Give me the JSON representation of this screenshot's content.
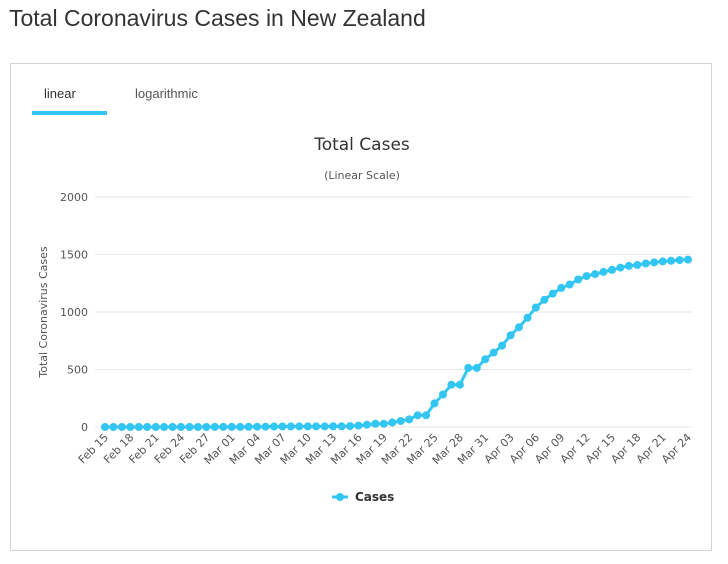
{
  "page": {
    "title": "Total Coronavirus Cases in New Zealand"
  },
  "tabs": [
    {
      "label": "linear",
      "active": true
    },
    {
      "label": "logarithmic",
      "active": false
    }
  ],
  "colors": {
    "accent": "#33c6f2",
    "series": "#33c6f2",
    "grid": "#e6e6e6"
  },
  "chart_data": {
    "type": "line",
    "title": "Total Cases",
    "subtitle": "(Linear Scale)",
    "xlabel": "",
    "ylabel": "Total Coronavirus Cases",
    "ylim": [
      0,
      2000
    ],
    "yticks": [
      0,
      500,
      1000,
      1500,
      2000
    ],
    "grid": true,
    "legend_position": "bottom-center",
    "x": [
      "Feb 15",
      "Feb 16",
      "Feb 17",
      "Feb 18",
      "Feb 19",
      "Feb 20",
      "Feb 21",
      "Feb 22",
      "Feb 23",
      "Feb 24",
      "Feb 25",
      "Feb 26",
      "Feb 27",
      "Feb 28",
      "Feb 29",
      "Mar 01",
      "Mar 02",
      "Mar 03",
      "Mar 04",
      "Mar 05",
      "Mar 06",
      "Mar 07",
      "Mar 08",
      "Mar 09",
      "Mar 10",
      "Mar 11",
      "Mar 12",
      "Mar 13",
      "Mar 14",
      "Mar 15",
      "Mar 16",
      "Mar 17",
      "Mar 18",
      "Mar 19",
      "Mar 20",
      "Mar 21",
      "Mar 22",
      "Mar 23",
      "Mar 24",
      "Mar 25",
      "Mar 26",
      "Mar 27",
      "Mar 28",
      "Mar 29",
      "Mar 30",
      "Mar 31",
      "Apr 01",
      "Apr 02",
      "Apr 03",
      "Apr 04",
      "Apr 05",
      "Apr 06",
      "Apr 07",
      "Apr 08",
      "Apr 09",
      "Apr 10",
      "Apr 11",
      "Apr 12",
      "Apr 13",
      "Apr 14",
      "Apr 15",
      "Apr 16",
      "Apr 17",
      "Apr 18",
      "Apr 19",
      "Apr 20",
      "Apr 21",
      "Apr 22",
      "Apr 23",
      "Apr 24"
    ],
    "x_tick_labels": [
      "Feb 15",
      "Feb 18",
      "Feb 21",
      "Feb 24",
      "Feb 27",
      "Mar 01",
      "Mar 04",
      "Mar 07",
      "Mar 10",
      "Mar 13",
      "Mar 16",
      "Mar 19",
      "Mar 22",
      "Mar 25",
      "Mar 28",
      "Mar 31",
      "Apr 03",
      "Apr 06",
      "Apr 09",
      "Apr 12",
      "Apr 15",
      "Apr 18",
      "Apr 21",
      "Apr 24"
    ],
    "series": [
      {
        "name": "Cases",
        "values": [
          0,
          0,
          0,
          0,
          0,
          0,
          0,
          0,
          0,
          0,
          0,
          0,
          0,
          1,
          1,
          1,
          1,
          2,
          3,
          3,
          4,
          4,
          5,
          5,
          5,
          5,
          5,
          6,
          6,
          8,
          12,
          20,
          28,
          28,
          39,
          52,
          66,
          102,
          102,
          205,
          283,
          368,
          368,
          514,
          514,
          589,
          647,
          708,
          797,
          868,
          950,
          1039,
          1106,
          1160,
          1210,
          1239,
          1283,
          1312,
          1330,
          1349,
          1366,
          1386,
          1401,
          1409,
          1422,
          1431,
          1440,
          1445,
          1451,
          1456
        ]
      }
    ]
  }
}
